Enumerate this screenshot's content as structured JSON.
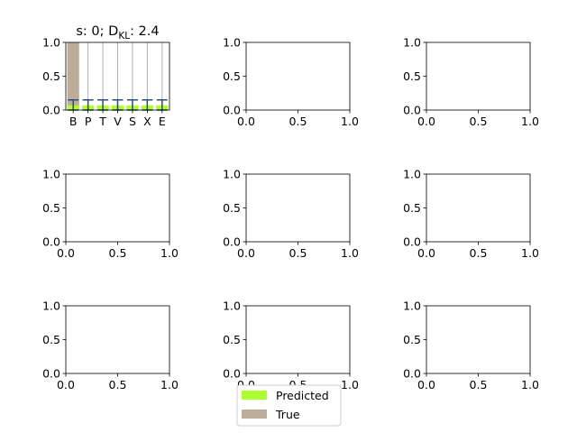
{
  "figure": {
    "legend": {
      "entries": [
        {
          "label": "Predicted",
          "color": "#adff2f"
        },
        {
          "label": "True",
          "color": "#bcad98"
        }
      ]
    }
  },
  "chart_data": [
    {
      "type": "bar",
      "title_main": "s: 0; D",
      "title_sub": "KL",
      "title_value": ": 2.4",
      "categories": [
        "B",
        "P",
        "T",
        "V",
        "S",
        "X",
        "E"
      ],
      "series": [
        {
          "name": "True",
          "color": "#bcad98",
          "values": [
            1.0,
            0,
            0,
            0,
            0,
            0,
            0
          ]
        },
        {
          "name": "Predicted",
          "color": "#adff2f",
          "values": [
            0.07,
            0.07,
            0.07,
            0.07,
            0.07,
            0.07,
            0.07
          ]
        }
      ],
      "error_bars": {
        "color": "#2c4a7a",
        "low": [
          0.0,
          0.0,
          0.0,
          0.0,
          0.0,
          0.0,
          0.0
        ],
        "high": [
          0.15,
          0.15,
          0.15,
          0.15,
          0.15,
          0.15,
          0.15
        ]
      },
      "ylim": [
        0,
        1.0
      ],
      "yticks": [
        "0.0",
        "0.5",
        "1.0"
      ],
      "grid": "x"
    },
    {
      "type": "empty",
      "xlim": [
        0,
        1
      ],
      "ylim": [
        0,
        1
      ],
      "xticks": [
        "0.0",
        "0.5",
        "1.0"
      ],
      "yticks": [
        "0.0",
        "0.5",
        "1.0"
      ]
    },
    {
      "type": "empty",
      "xlim": [
        0,
        1
      ],
      "ylim": [
        0,
        1
      ],
      "xticks": [
        "0.0",
        "0.5",
        "1.0"
      ],
      "yticks": [
        "0.0",
        "0.5",
        "1.0"
      ]
    },
    {
      "type": "empty",
      "xlim": [
        0,
        1
      ],
      "ylim": [
        0,
        1
      ],
      "xticks": [
        "0.0",
        "0.5",
        "1.0"
      ],
      "yticks": [
        "0.0",
        "0.5",
        "1.0"
      ]
    },
    {
      "type": "empty",
      "xlim": [
        0,
        1
      ],
      "ylim": [
        0,
        1
      ],
      "xticks": [
        "0.0",
        "0.5",
        "1.0"
      ],
      "yticks": [
        "0.0",
        "0.5",
        "1.0"
      ]
    },
    {
      "type": "empty",
      "xlim": [
        0,
        1
      ],
      "ylim": [
        0,
        1
      ],
      "xticks": [
        "0.0",
        "0.5",
        "1.0"
      ],
      "yticks": [
        "0.0",
        "0.5",
        "1.0"
      ]
    },
    {
      "type": "empty",
      "xlim": [
        0,
        1
      ],
      "ylim": [
        0,
        1
      ],
      "xticks": [
        "0.0",
        "0.5",
        "1.0"
      ],
      "yticks": [
        "0.0",
        "0.5",
        "1.0"
      ]
    },
    {
      "type": "empty",
      "xlim": [
        0,
        1
      ],
      "ylim": [
        0,
        1
      ],
      "xticks": [
        "0.0",
        "0.5",
        "1.0"
      ],
      "yticks": [
        "0.0",
        "0.5",
        "1.0"
      ]
    },
    {
      "type": "empty",
      "xlim": [
        0,
        1
      ],
      "ylim": [
        0,
        1
      ],
      "xticks": [
        "0.0",
        "0.5",
        "1.0"
      ],
      "yticks": [
        "0.0",
        "0.5",
        "1.0"
      ]
    }
  ]
}
